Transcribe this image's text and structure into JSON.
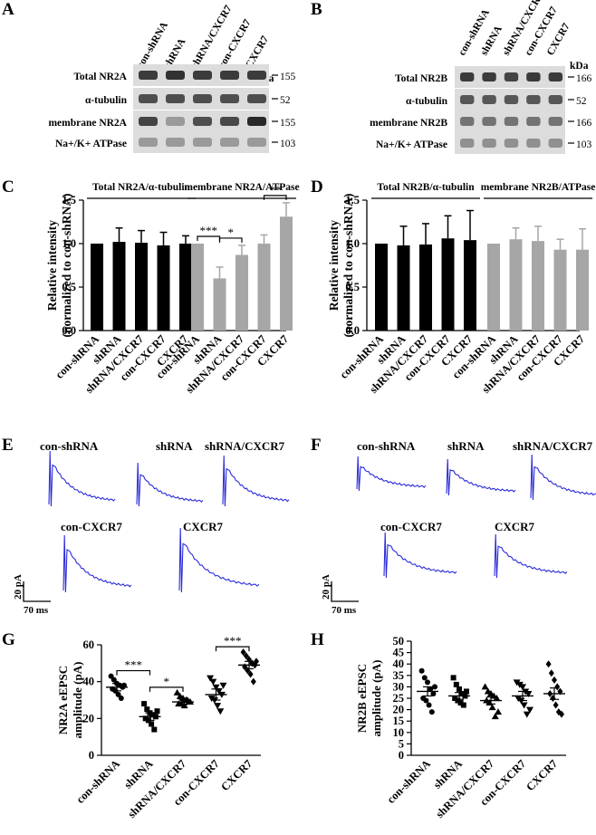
{
  "figure": {
    "panel_labels": [
      "A",
      "B",
      "C",
      "D",
      "E",
      "F",
      "G",
      "H"
    ],
    "unit_kda": "kDa",
    "blot_A": {
      "lanes": [
        "con-shRNA",
        "shRNA",
        "shRNA/CXCR7",
        "con-CXCR7",
        "CXCR7"
      ],
      "rows": [
        {
          "label": "Total NR2A",
          "kda": "155"
        },
        {
          "label": "α-tubulin",
          "kda": "52"
        },
        {
          "label": "membrane NR2A",
          "kda": "155"
        },
        {
          "label": "Na+/K+ ATPase",
          "kda": "103"
        }
      ]
    },
    "blot_B": {
      "lanes": [
        "con-shRNA",
        "shRNA",
        "shRNA/CXCR7",
        "con-CXCR7",
        "CXCR7"
      ],
      "rows": [
        {
          "label": "Total NR2B",
          "kda": "166"
        },
        {
          "label": "α-tubulin",
          "kda": "52"
        },
        {
          "label": "membrane NR2B",
          "kda": "166"
        },
        {
          "label": "Na+/K+ ATPase",
          "kda": "103"
        }
      ]
    },
    "traces_E": {
      "labels": [
        "con-shRNA",
        "shRNA",
        "shRNA/CXCR7",
        "con-CXCR7",
        "CXCR7"
      ],
      "scale_y": "20 pA",
      "scale_x": "70 ms",
      "color": "#2b2bd9"
    },
    "traces_F": {
      "labels": [
        "con-shRNA",
        "shRNA",
        "shRNA/CXCR7",
        "con-CXCR7",
        "CXCR7"
      ],
      "scale_y": "20 pA",
      "scale_x": "70 ms",
      "color": "#2b2bd9"
    }
  },
  "chart_data": [
    {
      "panel": "C",
      "type": "bar",
      "ylabel": "Relative intensity\n(normalized to con-shRNA)",
      "ylim": [
        0,
        1.5
      ],
      "yticks": [
        "0.0",
        "0.5",
        "1.0",
        "1.5"
      ],
      "groups": [
        {
          "label": "Total NR2A/α-tubulin",
          "color": "#000000",
          "categories": [
            "con-shRNA",
            "shRNA",
            "shRNA/CXCR7",
            "con-CXCR7",
            "CXCR7"
          ],
          "values": [
            1.0,
            1.02,
            1.01,
            0.98,
            1.0
          ],
          "errors": [
            0,
            0.16,
            0.14,
            0.15,
            0.09
          ]
        },
        {
          "label": "membrane NR2A/ATPase",
          "color": "#a6a6a6",
          "categories": [
            "con-shRNA",
            "shRNA",
            "shRNA/CXCR7",
            "con-CXCR7",
            "CXCR7"
          ],
          "values": [
            1.0,
            0.6,
            0.87,
            1.0,
            1.31
          ],
          "errors": [
            0,
            0.13,
            0.11,
            0.1,
            0.16
          ]
        }
      ],
      "significance": [
        {
          "from": 5,
          "to": 6,
          "label": "***"
        },
        {
          "from": 6,
          "to": 7,
          "label": "*"
        },
        {
          "from": 8,
          "to": 9,
          "label": "**"
        }
      ]
    },
    {
      "panel": "D",
      "type": "bar",
      "ylabel": "Relative intensity\n(normalized to con-shRNA)",
      "ylim": [
        0,
        1.5
      ],
      "yticks": [
        "0.0",
        "0.5",
        "1.0",
        "1.5"
      ],
      "groups": [
        {
          "label": "Total NR2B/α-tubulin",
          "color": "#000000",
          "categories": [
            "con-shRNA",
            "shRNA",
            "shRNA/CXCR7",
            "con-CXCR7",
            "CXCR7"
          ],
          "values": [
            1.0,
            0.98,
            0.99,
            1.06,
            1.04
          ],
          "errors": [
            0,
            0.22,
            0.24,
            0.26,
            0.34
          ]
        },
        {
          "label": "membrane NR2B/ATPase",
          "color": "#a6a6a6",
          "categories": [
            "con-shRNA",
            "shRNA",
            "shRNA/CXCR7",
            "con-CXCR7",
            "CXCR7"
          ],
          "values": [
            1.0,
            1.05,
            1.03,
            0.93,
            0.93
          ],
          "errors": [
            0,
            0.13,
            0.17,
            0.12,
            0.24
          ]
        }
      ],
      "significance": []
    },
    {
      "panel": "G",
      "type": "scatter",
      "ylabel": "NR2A eEPSC\namplitude (pA)",
      "ylim": [
        0,
        60
      ],
      "yticks": [
        "0",
        "20",
        "40",
        "60"
      ],
      "categories": [
        "con-shRNA",
        "shRNA",
        "shRNA/CXCR7",
        "con-CXCR7",
        "CXCR7"
      ],
      "markers": [
        "circle",
        "square",
        "triangle",
        "triangle-down",
        "diamond"
      ],
      "points": [
        [
          43,
          41,
          39,
          38,
          37,
          36,
          35,
          33,
          31,
          38
        ],
        [
          28,
          25,
          23,
          22,
          21,
          20,
          19,
          17,
          14,
          24
        ],
        [
          34,
          32,
          31,
          30,
          29,
          28,
          28,
          27,
          30,
          29
        ],
        [
          42,
          40,
          37,
          35,
          33,
          31,
          30,
          27,
          24,
          38
        ],
        [
          56,
          54,
          52,
          50,
          49,
          48,
          46,
          44,
          40,
          51
        ]
      ],
      "means": [
        37,
        21,
        29,
        33,
        49
      ],
      "sems": [
        2,
        2,
        1.5,
        3,
        2
      ],
      "significance": [
        {
          "from": 0,
          "to": 1,
          "label": "***"
        },
        {
          "from": 1,
          "to": 2,
          "label": "*"
        },
        {
          "from": 3,
          "to": 4,
          "label": "***"
        }
      ]
    },
    {
      "panel": "H",
      "type": "scatter",
      "ylabel": "NR2B eEPSC\namplitude (pA)",
      "ylim": [
        0,
        50
      ],
      "yticks": [
        "0",
        "5",
        "10",
        "15",
        "20",
        "25",
        "30",
        "35",
        "40",
        "45",
        "50"
      ],
      "categories": [
        "con-shRNA",
        "shRNA",
        "shRNA/CXCR7",
        "con-CXCR7",
        "CXCR7"
      ],
      "markers": [
        "circle",
        "square",
        "triangle",
        "triangle-down",
        "diamond"
      ],
      "points": [
        [
          37,
          34,
          32,
          29,
          27,
          25,
          24,
          22,
          19,
          30
        ],
        [
          34,
          31,
          29,
          27,
          26,
          25,
          24,
          23,
          22,
          28
        ],
        [
          30,
          28,
          27,
          26,
          25,
          24,
          23,
          21,
          17,
          19
        ],
        [
          32,
          31,
          30,
          28,
          27,
          25,
          24,
          22,
          18,
          20
        ],
        [
          40,
          36,
          33,
          30,
          28,
          27,
          25,
          22,
          19,
          18
        ]
      ],
      "means": [
        28,
        26,
        24,
        26,
        27
      ],
      "sems": [
        2,
        1.5,
        1.5,
        2,
        2.5
      ],
      "significance": []
    }
  ]
}
